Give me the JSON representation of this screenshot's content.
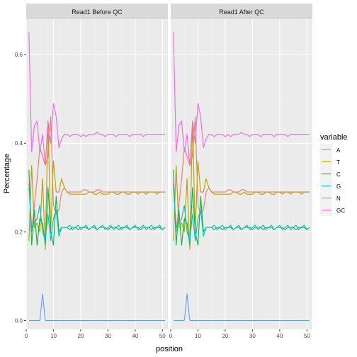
{
  "chart_data": {
    "type": "line",
    "facets": [
      "Read1 Before QC",
      "Read1 After QC"
    ],
    "xlabel": "position",
    "ylabel": "Percentage",
    "xlim": [
      0,
      52
    ],
    "ylim": [
      -0.02,
      0.68
    ],
    "x_ticks": [
      0,
      10,
      20,
      30,
      40,
      50
    ],
    "x_tick_labels": [
      "0",
      "10",
      "20",
      "30",
      "40",
      "50"
    ],
    "y_ticks": [
      0.0,
      0.2,
      0.4,
      0.6
    ],
    "y_tick_labels": [
      "0.0",
      "0.2",
      "0.4",
      "0.6"
    ],
    "grid": true,
    "legend": {
      "title": "variable",
      "position": "right",
      "entries": [
        "A",
        "T",
        "C",
        "G",
        "N",
        "GC"
      ]
    },
    "colors": {
      "A": "#F8766D",
      "T": "#B79F00",
      "C": "#00BA38",
      "G": "#00BFC4",
      "N": "#619CFF",
      "GC": "#F564E3"
    },
    "x": [
      1,
      2,
      3,
      4,
      5,
      6,
      7,
      8,
      9,
      10,
      11,
      12,
      13,
      14,
      15,
      16,
      17,
      18,
      19,
      20,
      21,
      22,
      23,
      24,
      25,
      26,
      27,
      28,
      29,
      30,
      31,
      32,
      33,
      34,
      35,
      36,
      37,
      38,
      39,
      40,
      41,
      42,
      43,
      44,
      45,
      46,
      47,
      48,
      49,
      50,
      51
    ],
    "series": [
      {
        "name": "A",
        "values": [
          0.31,
          0.2,
          0.26,
          0.32,
          0.39,
          0.37,
          0.35,
          0.37,
          0.46,
          0.26,
          0.24,
          0.25,
          0.29,
          0.3,
          0.29,
          0.29,
          0.29,
          0.29,
          0.29,
          0.29,
          0.295,
          0.295,
          0.29,
          0.29,
          0.29,
          0.295,
          0.295,
          0.29,
          0.29,
          0.29,
          0.29,
          0.29,
          0.29,
          0.29,
          0.29,
          0.29,
          0.29,
          0.29,
          0.29,
          0.29,
          0.29,
          0.29,
          0.29,
          0.29,
          0.29,
          0.29,
          0.29,
          0.29,
          0.29,
          0.29,
          0.29
        ]
      },
      {
        "name": "T",
        "values": [
          0.18,
          0.35,
          0.21,
          0.22,
          0.2,
          0.32,
          0.16,
          0.45,
          0.2,
          0.36,
          0.29,
          0.29,
          0.32,
          0.3,
          0.29,
          0.285,
          0.285,
          0.285,
          0.285,
          0.285,
          0.285,
          0.285,
          0.29,
          0.29,
          0.285,
          0.285,
          0.29,
          0.285,
          0.285,
          0.285,
          0.29,
          0.29,
          0.285,
          0.285,
          0.29,
          0.29,
          0.285,
          0.285,
          0.29,
          0.29,
          0.285,
          0.29,
          0.29,
          0.285,
          0.29,
          0.29,
          0.29,
          0.285,
          0.29,
          0.29,
          0.29
        ]
      },
      {
        "name": "C",
        "values": [
          0.34,
          0.17,
          0.25,
          0.17,
          0.23,
          0.22,
          0.17,
          0.3,
          0.2,
          0.17,
          0.28,
          0.2,
          0.21,
          0.21,
          0.21,
          0.205,
          0.21,
          0.21,
          0.205,
          0.21,
          0.21,
          0.21,
          0.205,
          0.21,
          0.21,
          0.205,
          0.21,
          0.21,
          0.21,
          0.205,
          0.21,
          0.21,
          0.21,
          0.205,
          0.21,
          0.21,
          0.21,
          0.205,
          0.21,
          0.21,
          0.21,
          0.205,
          0.21,
          0.21,
          0.21,
          0.205,
          0.21,
          0.21,
          0.21,
          0.205,
          0.21
        ]
      },
      {
        "name": "G",
        "values": [
          0.3,
          0.21,
          0.22,
          0.23,
          0.26,
          0.2,
          0.18,
          0.24,
          0.18,
          0.23,
          0.25,
          0.19,
          0.21,
          0.21,
          0.21,
          0.215,
          0.205,
          0.21,
          0.215,
          0.205,
          0.21,
          0.215,
          0.205,
          0.21,
          0.215,
          0.205,
          0.21,
          0.215,
          0.205,
          0.21,
          0.215,
          0.205,
          0.21,
          0.215,
          0.205,
          0.21,
          0.215,
          0.205,
          0.21,
          0.215,
          0.205,
          0.21,
          0.215,
          0.205,
          0.21,
          0.215,
          0.205,
          0.21,
          0.215,
          0.205,
          0.21
        ]
      },
      {
        "name": "N",
        "values": [
          0,
          0,
          0,
          0,
          0,
          0.06,
          0,
          0,
          0,
          0,
          0,
          0,
          0,
          0,
          0,
          0,
          0,
          0,
          0,
          0,
          0,
          0,
          0,
          0,
          0,
          0,
          0,
          0,
          0,
          0,
          0,
          0,
          0,
          0,
          0,
          0,
          0,
          0,
          0,
          0,
          0,
          0,
          0,
          0,
          0,
          0,
          0,
          0,
          0,
          0,
          0
        ]
      },
      {
        "name": "GC",
        "values": [
          0.65,
          0.38,
          0.44,
          0.45,
          0.38,
          0.42,
          0.35,
          0.45,
          0.4,
          0.49,
          0.46,
          0.39,
          0.41,
          0.42,
          0.42,
          0.415,
          0.42,
          0.42,
          0.42,
          0.415,
          0.42,
          0.415,
          0.42,
          0.42,
          0.42,
          0.425,
          0.42,
          0.42,
          0.415,
          0.42,
          0.42,
          0.42,
          0.415,
          0.42,
          0.42,
          0.42,
          0.42,
          0.415,
          0.42,
          0.42,
          0.42,
          0.42,
          0.415,
          0.42,
          0.42,
          0.42,
          0.42,
          0.42,
          0.42,
          0.42,
          0.42
        ]
      }
    ]
  }
}
